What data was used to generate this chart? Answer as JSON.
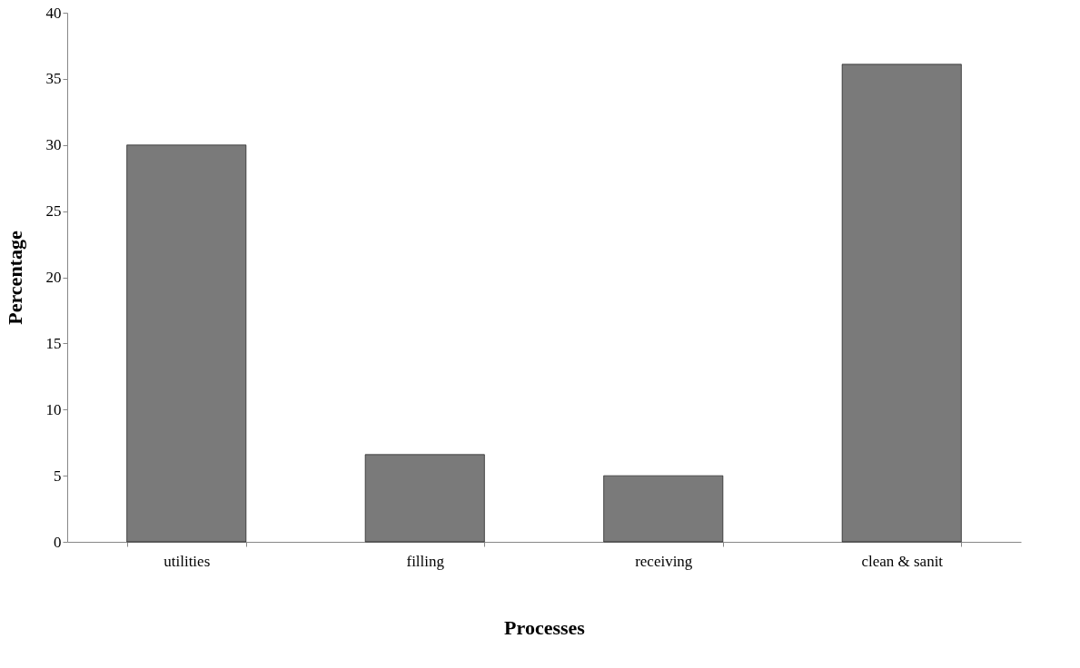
{
  "chart_data": {
    "type": "bar",
    "xlabel": "Processes",
    "ylabel": "Percentage",
    "categories": [
      "utilities",
      "filling",
      "receiving",
      "clean & sanit"
    ],
    "values": [
      30,
      6.6,
      5,
      36.1
    ],
    "color": "#7a7a7a",
    "ylim": [
      0,
      40
    ],
    "yticks": [
      0,
      5,
      10,
      15,
      20,
      25,
      30,
      35,
      40
    ],
    "grid": false
  }
}
